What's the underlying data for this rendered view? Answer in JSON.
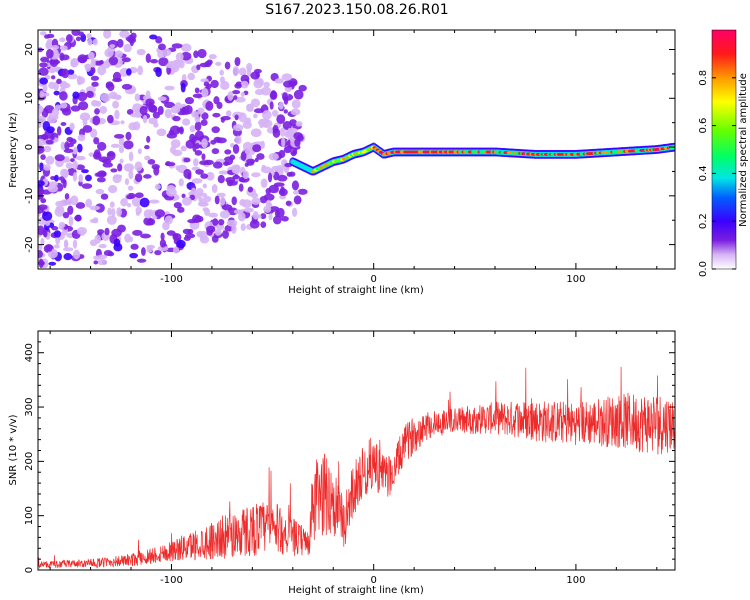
{
  "title": "S167.2023.150.08.26.R01",
  "chart_data": [
    {
      "type": "heatmap",
      "name": "spectrogram",
      "xlabel": "Height of straight line (km)",
      "ylabel": "Frequency (Hz)",
      "xlim": [
        -166,
        149
      ],
      "ylim": [
        -25,
        24
      ],
      "xticks": [
        -100,
        0,
        100
      ],
      "xtick_labels": [
        "-100",
        "0",
        "100"
      ],
      "yticks": [
        -20,
        -10,
        0,
        10,
        20
      ],
      "ytick_labels": [
        "-20",
        "-10",
        "0",
        "10",
        "20"
      ],
      "colorbar": {
        "label": "Normalized spectral amplitude",
        "range": [
          0,
          1
        ],
        "ticks": [
          0.0,
          0.2,
          0.4,
          0.6,
          0.8
        ],
        "tick_labels": [
          "0.0",
          "0.2",
          "0.4",
          "0.6",
          "0.8"
        ],
        "colors": [
          "#ffffff",
          "#d6b4f5",
          "#7b1fe0",
          "#3a00ff",
          "#0060ff",
          "#00e5e5",
          "#00ff66",
          "#66ff00",
          "#ffff00",
          "#ff9900",
          "#ff1a1a",
          "#ff0066"
        ]
      },
      "ridge": {
        "x": [
          -40,
          -35,
          -30,
          -25,
          -20,
          -15,
          -10,
          -5,
          0,
          5,
          10,
          20,
          30,
          40,
          60,
          80,
          100,
          120,
          140,
          149
        ],
        "y": [
          -3,
          -4,
          -5,
          -4,
          -3,
          -2.5,
          -1.5,
          -1,
          0,
          -1.5,
          -1,
          -1,
          -1,
          -1,
          -1,
          -1.5,
          -1.5,
          -1,
          -0.5,
          0
        ]
      },
      "noise_region": {
        "x_range": [
          -166,
          -35
        ],
        "y_range": [
          -25,
          24
        ]
      }
    },
    {
      "type": "line",
      "name": "snr",
      "xlabel": "Height of straight line (km)",
      "ylabel": "SNR (10 * v/v)",
      "xlim": [
        -166,
        149
      ],
      "ylim": [
        0,
        440
      ],
      "xticks": [
        -100,
        0,
        100
      ],
      "xtick_labels": [
        "-100",
        "0",
        "100"
      ],
      "yticks": [
        0,
        100,
        200,
        300,
        400
      ],
      "ytick_labels": [
        "0",
        "100",
        "200",
        "300",
        "400"
      ],
      "color": "#ee2a2a",
      "envelope": {
        "x": [
          -166,
          -140,
          -120,
          -100,
          -80,
          -70,
          -60,
          -50,
          -40,
          -32,
          -30,
          -25,
          -20,
          -15,
          -10,
          -5,
          0,
          5,
          10,
          15,
          20,
          25,
          30,
          40,
          60,
          80,
          100,
          120,
          140,
          149
        ],
        "mean": [
          10,
          12,
          18,
          35,
          55,
          65,
          75,
          80,
          60,
          50,
          120,
          140,
          130,
          80,
          150,
          180,
          200,
          170,
          180,
          230,
          250,
          265,
          270,
          275,
          280,
          275,
          270,
          275,
          270,
          270
        ],
        "amp": [
          6,
          8,
          12,
          20,
          35,
          45,
          50,
          50,
          35,
          25,
          80,
          80,
          70,
          50,
          50,
          50,
          50,
          40,
          40,
          35,
          35,
          30,
          25,
          25,
          30,
          40,
          40,
          50,
          60,
          50
        ]
      }
    }
  ]
}
